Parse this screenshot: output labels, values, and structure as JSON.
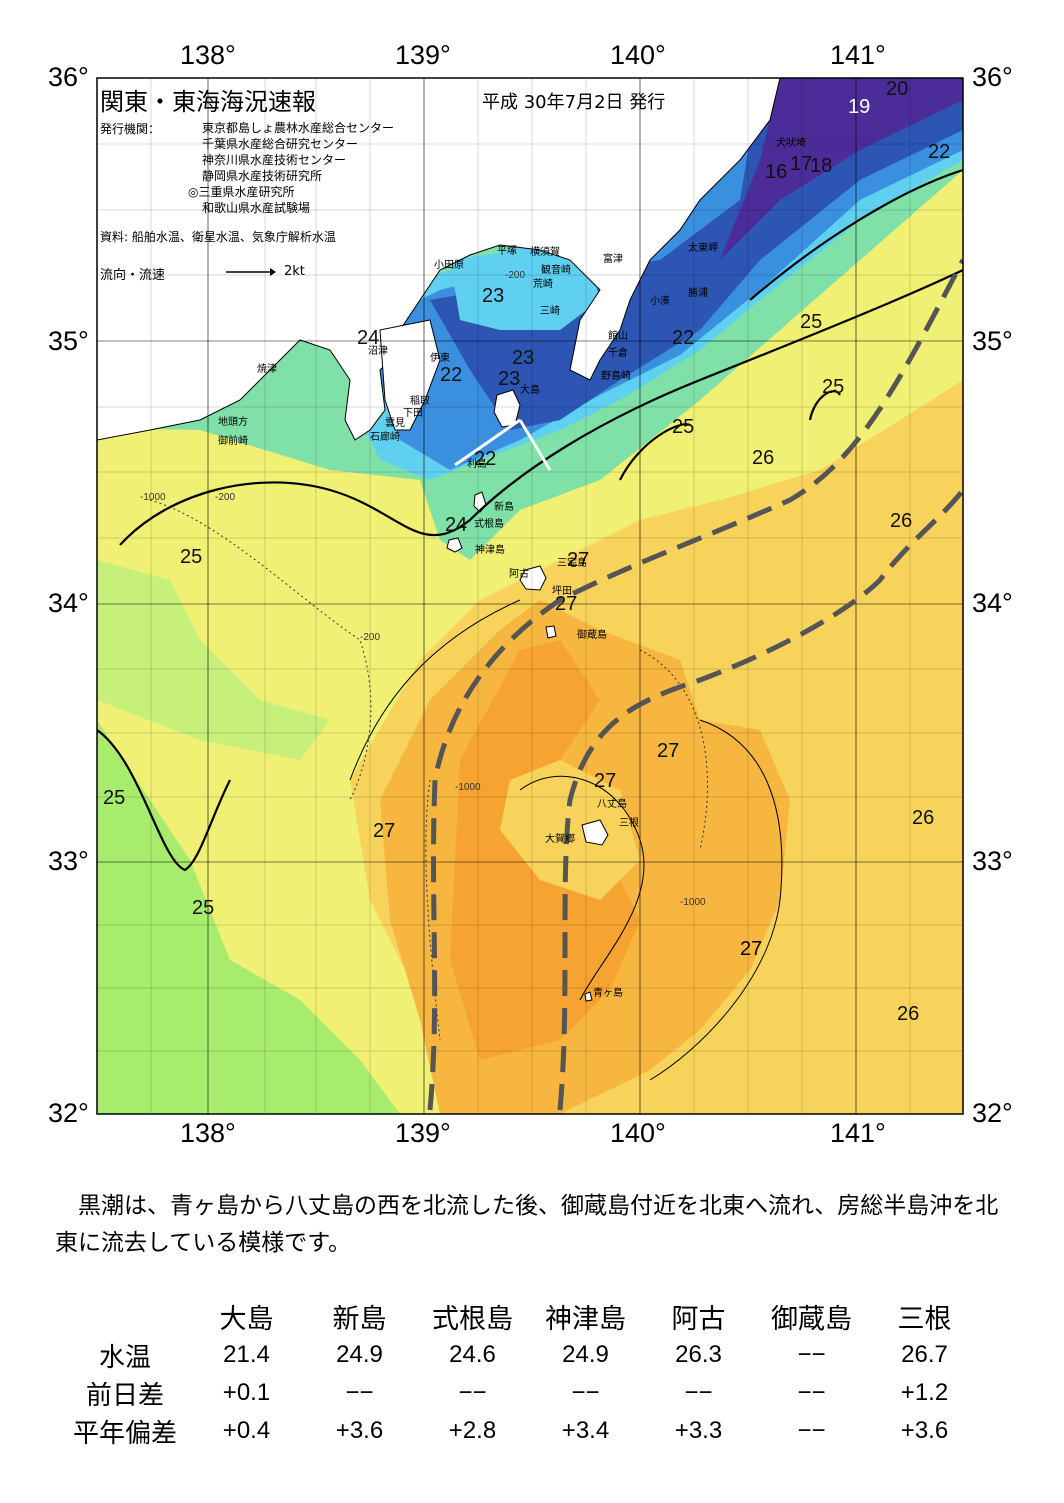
{
  "header": {
    "title": "関東・東海海況速報",
    "date": "平成 30年7月2日 発行",
    "issuer_label": "発行機関：",
    "issuers": [
      "東京都島しょ農林水産総合センター",
      "千葉県水産総合研究センター",
      "神奈川県水産技術センター",
      "静岡県水産技術研究所",
      "◎三重県水産研究所",
      "和歌山県水産試験場"
    ],
    "source": "資料: 船舶水温、衛星水温、気象庁解析水温",
    "current_label": "流向・流速",
    "current_scale": "2kt"
  },
  "axes": {
    "lon_labels": [
      "138°",
      "139°",
      "140°",
      "141°"
    ],
    "lat_labels": [
      "36°",
      "35°",
      "34°",
      "33°",
      "32°"
    ]
  },
  "map": {
    "place_labels": [
      "小田原",
      "平塚",
      "横須賀",
      "観音崎",
      "富津",
      "荒崎",
      "三崎",
      "犬吠埼",
      "太東岬",
      "小湊",
      "勝浦",
      "館山",
      "千倉",
      "野島崎",
      "沼津",
      "伊東",
      "稲取",
      "下田",
      "焼津",
      "地頭方",
      "御前崎",
      "雲見",
      "石廊崎",
      "大島",
      "利島",
      "新島",
      "式根島",
      "神津島",
      "三宅島",
      "阿古",
      "坪田",
      "御蔵島",
      "八丈島",
      "三根",
      "大賀郷",
      "青ヶ島"
    ],
    "isotherm_labels": [
      "16",
      "17",
      "18",
      "19",
      "20",
      "22",
      "22",
      "22",
      "22",
      "23",
      "23",
      "23",
      "24",
      "24",
      "25",
      "25",
      "25",
      "25",
      "25",
      "25",
      "26",
      "26",
      "26",
      "26",
      "27",
      "27",
      "27",
      "27",
      "27"
    ],
    "depth_labels": [
      "-200",
      "-1000"
    ],
    "colors": {
      "land": "#ffffff",
      "t_under_18": "#4b2c98",
      "t19_20": "#2d55b4",
      "t21_22": "#3a8fde",
      "t23_24": "#5fd0f0",
      "t24_25": "#7fe0a8",
      "t25_26": "#a7ec6c",
      "t26": "#f0f074",
      "t26_27": "#f7d35c",
      "t27": "#f6b640",
      "t27_plus": "#f6a332",
      "kuroshio_axis": "#555555"
    }
  },
  "summary": "黒潮は、青ヶ島から八丈島の西を北流した後、御蔵島付近を北東へ流れ、房総半島沖を北東に流去している模様です。",
  "table": {
    "columns": [
      "大島",
      "新島",
      "式根島",
      "神津島",
      "阿古",
      "御蔵島",
      "三根"
    ],
    "rows": [
      {
        "label": "水温",
        "values": [
          "21.4",
          "24.9",
          "24.6",
          "24.9",
          "26.3",
          "−−",
          "26.7"
        ]
      },
      {
        "label": "前日差",
        "values": [
          "+0.1",
          "−−",
          "−−",
          "−−",
          "−−",
          "−−",
          "+1.2"
        ]
      },
      {
        "label": "平年偏差",
        "values": [
          "+0.4",
          "+3.6",
          "+2.8",
          "+3.4",
          "+3.3",
          "−−",
          "+3.6"
        ]
      }
    ]
  }
}
